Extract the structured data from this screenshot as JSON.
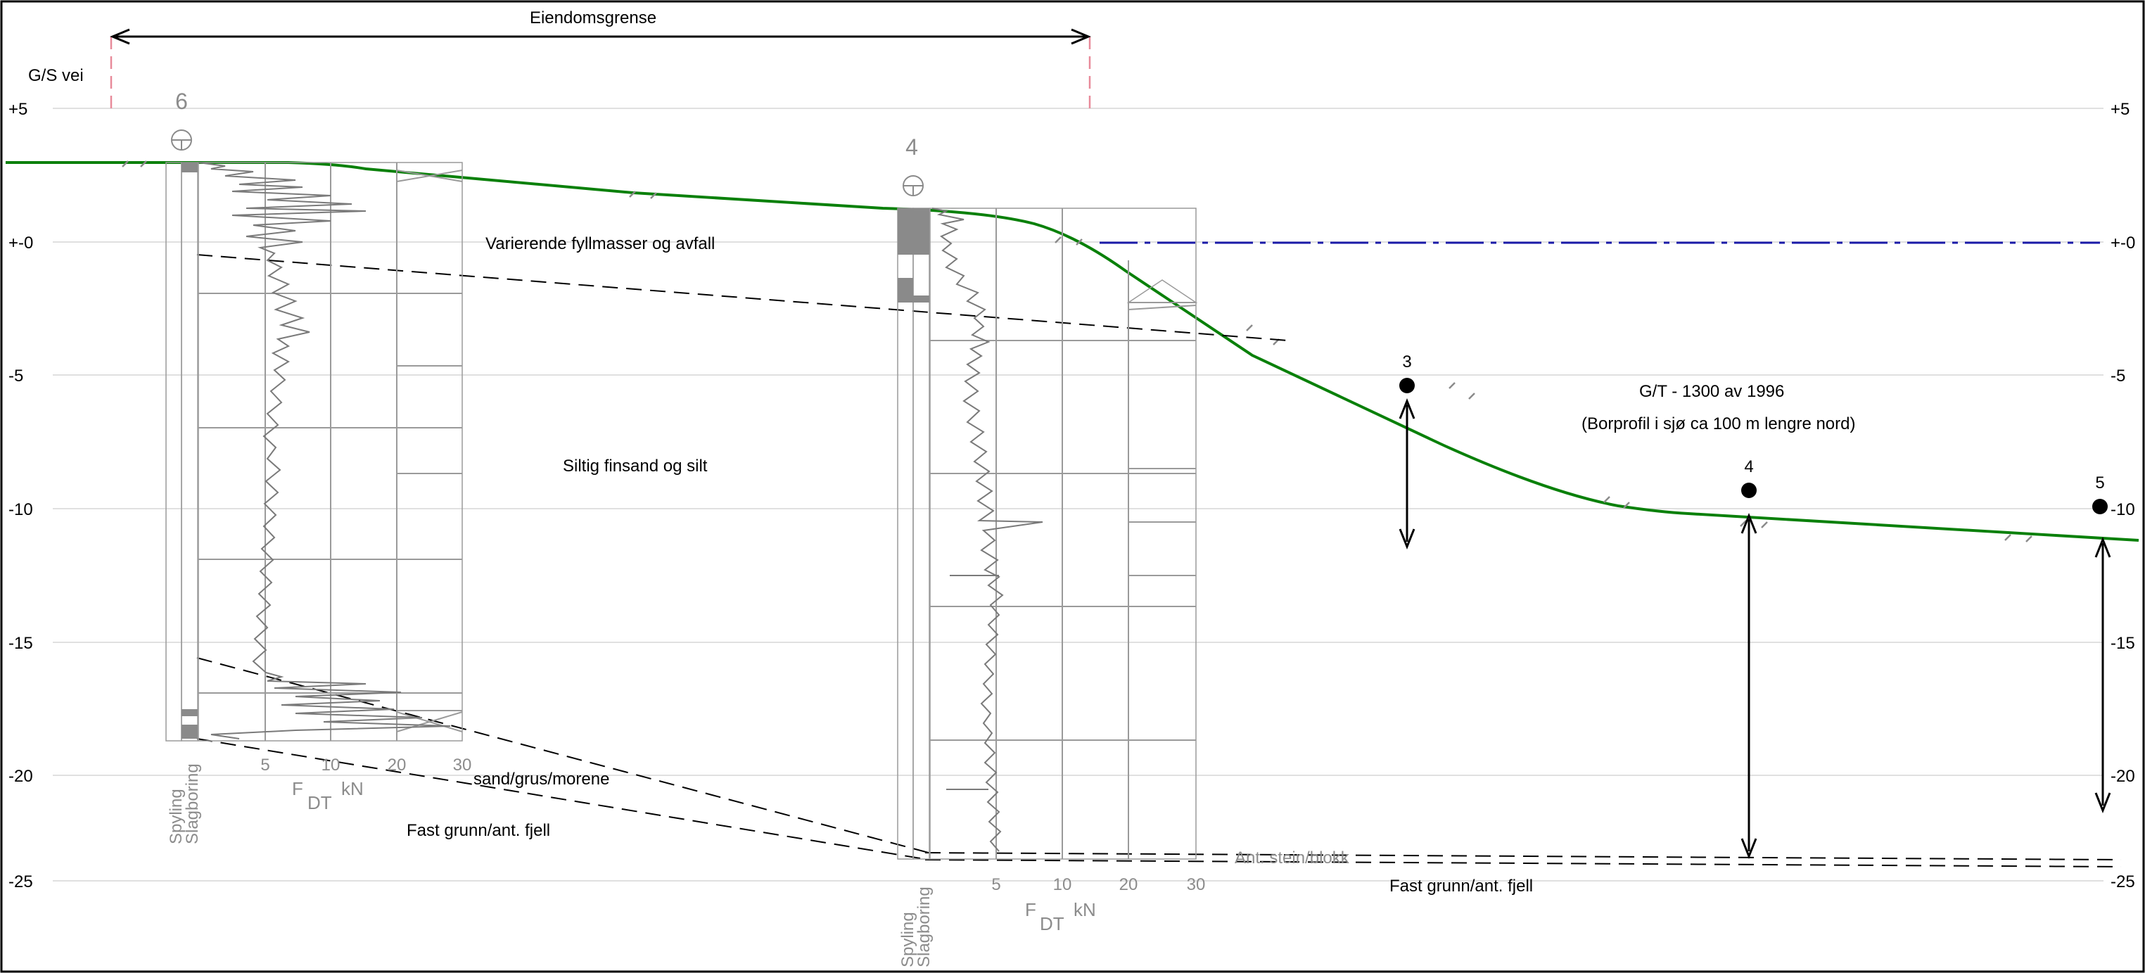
{
  "title_labels": {
    "property_boundary": "Eiendomsgrense",
    "road": "G/S vei"
  },
  "elevation_axis": {
    "ticks": [
      "+5",
      "+-0",
      "-5",
      "-10",
      "-15",
      "-20",
      "-25"
    ],
    "right_ticks": [
      "+5",
      "+-0",
      "-5",
      "-10",
      "-15",
      "-20",
      "-25"
    ]
  },
  "soil_layers": {
    "fill": "Varierende fyllmasser og avfall",
    "silt": "Siltig finsand og silt",
    "sand": "sand/grus/morene",
    "bedrock_left": "Fast grunn/ant. fjell",
    "bedrock_right": "Fast grunn/ant. fjell",
    "stone": "Ant. stein/blokk"
  },
  "boreholes": [
    {
      "number": "6",
      "method_labels": [
        "Spyling",
        "Slagboring"
      ],
      "scale_ticks": [
        "5",
        "10",
        "20",
        "30"
      ],
      "force_label_main": "F",
      "force_label_sub": "DT",
      "force_unit": "kN"
    },
    {
      "number": "4",
      "method_labels": [
        "Spyling",
        "Slagboring"
      ],
      "scale_ticks": [
        "5",
        "10",
        "20",
        "30"
      ],
      "force_label_main": "F",
      "force_label_sub": "DT",
      "force_unit": "kN"
    }
  ],
  "sea_points": [
    {
      "number": "3"
    },
    {
      "number": "4"
    },
    {
      "number": "5"
    }
  ],
  "reference": {
    "line1": "G/T - 1300 av 1996",
    "line2": "(Borprofil i sjø ca 100 m lengre nord)"
  },
  "colors": {
    "terrain": "#0a800a",
    "water_level": "#1a1aa8",
    "property_line": "#e88a9a",
    "sounding": "#9a9a9a",
    "grid": "#d6d6d6"
  }
}
